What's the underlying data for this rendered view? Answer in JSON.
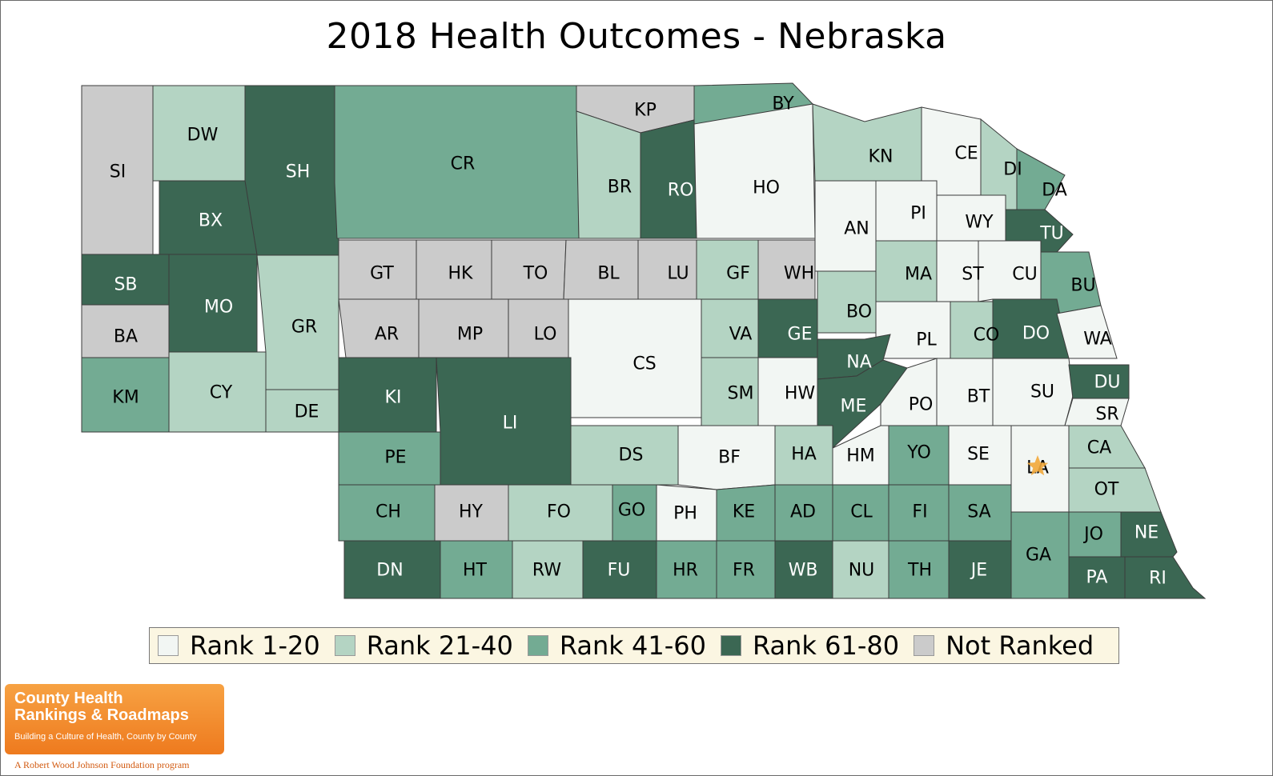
{
  "title": "2018 Health Outcomes - Nebraska",
  "colors": {
    "r1": "#f2f6f3",
    "r2": "#b4d4c3",
    "r3": "#73ab93",
    "r4": "#3b6753",
    "nr": "#cbcbcb"
  },
  "legend": [
    {
      "label": "Rank 1-20",
      "key": "r1"
    },
    {
      "label": "Rank 21-40",
      "key": "r2"
    },
    {
      "label": "Rank 41-60",
      "key": "r3"
    },
    {
      "label": "Rank 61-80",
      "key": "r4"
    },
    {
      "label": "Not Ranked",
      "key": "nr"
    }
  ],
  "counties": [
    {
      "abbr": "SI",
      "rank": "nr"
    },
    {
      "abbr": "DW",
      "rank": "r2"
    },
    {
      "abbr": "SH",
      "rank": "r4"
    },
    {
      "abbr": "CR",
      "rank": "r3"
    },
    {
      "abbr": "KP",
      "rank": "nr"
    },
    {
      "abbr": "BY",
      "rank": "r3"
    },
    {
      "abbr": "BX",
      "rank": "r4"
    },
    {
      "abbr": "BR",
      "rank": "r2"
    },
    {
      "abbr": "RO",
      "rank": "r4"
    },
    {
      "abbr": "HO",
      "rank": "r1"
    },
    {
      "abbr": "KN",
      "rank": "r2"
    },
    {
      "abbr": "CE",
      "rank": "r1"
    },
    {
      "abbr": "DI",
      "rank": "r2"
    },
    {
      "abbr": "DA",
      "rank": "r3"
    },
    {
      "abbr": "AN",
      "rank": "r1"
    },
    {
      "abbr": "PI",
      "rank": "r1"
    },
    {
      "abbr": "WY",
      "rank": "r1"
    },
    {
      "abbr": "TU",
      "rank": "r4"
    },
    {
      "abbr": "SB",
      "rank": "r4"
    },
    {
      "abbr": "MO",
      "rank": "r4"
    },
    {
      "abbr": "GR",
      "rank": "r2"
    },
    {
      "abbr": "GT",
      "rank": "nr"
    },
    {
      "abbr": "HK",
      "rank": "nr"
    },
    {
      "abbr": "TO",
      "rank": "nr"
    },
    {
      "abbr": "BL",
      "rank": "nr"
    },
    {
      "abbr": "LU",
      "rank": "nr"
    },
    {
      "abbr": "GF",
      "rank": "r2"
    },
    {
      "abbr": "WH",
      "rank": "nr"
    },
    {
      "abbr": "MA",
      "rank": "r2"
    },
    {
      "abbr": "ST",
      "rank": "r1"
    },
    {
      "abbr": "CU",
      "rank": "r1"
    },
    {
      "abbr": "BU",
      "rank": "r3"
    },
    {
      "abbr": "BA",
      "rank": "nr"
    },
    {
      "abbr": "AR",
      "rank": "nr"
    },
    {
      "abbr": "MP",
      "rank": "nr"
    },
    {
      "abbr": "LO",
      "rank": "nr"
    },
    {
      "abbr": "CS",
      "rank": "r1"
    },
    {
      "abbr": "VA",
      "rank": "r2"
    },
    {
      "abbr": "GE",
      "rank": "r4"
    },
    {
      "abbr": "BO",
      "rank": "r2"
    },
    {
      "abbr": "PL",
      "rank": "r1"
    },
    {
      "abbr": "CO",
      "rank": "r2"
    },
    {
      "abbr": "DO",
      "rank": "r4"
    },
    {
      "abbr": "WA",
      "rank": "r1"
    },
    {
      "abbr": "NA",
      "rank": "r4"
    },
    {
      "abbr": "KM",
      "rank": "r3"
    },
    {
      "abbr": "CY",
      "rank": "r2"
    },
    {
      "abbr": "DE",
      "rank": "r2"
    },
    {
      "abbr": "KI",
      "rank": "r4"
    },
    {
      "abbr": "LI",
      "rank": "r4"
    },
    {
      "abbr": "SM",
      "rank": "r2"
    },
    {
      "abbr": "HW",
      "rank": "r1"
    },
    {
      "abbr": "ME",
      "rank": "r4"
    },
    {
      "abbr": "PO",
      "rank": "r1"
    },
    {
      "abbr": "BT",
      "rank": "r1"
    },
    {
      "abbr": "SU",
      "rank": "r1"
    },
    {
      "abbr": "DU",
      "rank": "r4"
    },
    {
      "abbr": "SR",
      "rank": "r1"
    },
    {
      "abbr": "PE",
      "rank": "r3"
    },
    {
      "abbr": "DS",
      "rank": "r2"
    },
    {
      "abbr": "BF",
      "rank": "r1"
    },
    {
      "abbr": "HA",
      "rank": "r2"
    },
    {
      "abbr": "HM",
      "rank": "r1"
    },
    {
      "abbr": "YO",
      "rank": "r3"
    },
    {
      "abbr": "SE",
      "rank": "r1"
    },
    {
      "abbr": "LA",
      "rank": "r1"
    },
    {
      "abbr": "CA",
      "rank": "r2"
    },
    {
      "abbr": "CH",
      "rank": "r3"
    },
    {
      "abbr": "HY",
      "rank": "nr"
    },
    {
      "abbr": "FO",
      "rank": "r2"
    },
    {
      "abbr": "GO",
      "rank": "r3"
    },
    {
      "abbr": "PH",
      "rank": "r1"
    },
    {
      "abbr": "KE",
      "rank": "r3"
    },
    {
      "abbr": "AD",
      "rank": "r3"
    },
    {
      "abbr": "CL",
      "rank": "r3"
    },
    {
      "abbr": "FI",
      "rank": "r3"
    },
    {
      "abbr": "SA",
      "rank": "r3"
    },
    {
      "abbr": "OT",
      "rank": "r2"
    },
    {
      "abbr": "JO",
      "rank": "r3"
    },
    {
      "abbr": "NE",
      "rank": "r4"
    },
    {
      "abbr": "GA",
      "rank": "r3"
    },
    {
      "abbr": "DN",
      "rank": "r4"
    },
    {
      "abbr": "HT",
      "rank": "r3"
    },
    {
      "abbr": "RW",
      "rank": "r2"
    },
    {
      "abbr": "FU",
      "rank": "r4"
    },
    {
      "abbr": "HR",
      "rank": "r3"
    },
    {
      "abbr": "FR",
      "rank": "r3"
    },
    {
      "abbr": "WB",
      "rank": "r4"
    },
    {
      "abbr": "NU",
      "rank": "r2"
    },
    {
      "abbr": "TH",
      "rank": "r3"
    },
    {
      "abbr": "JE",
      "rank": "r4"
    },
    {
      "abbr": "PA",
      "rank": "r4"
    },
    {
      "abbr": "RI",
      "rank": "r4"
    }
  ],
  "capital_marker": "star-icon",
  "logo": {
    "line1": "County Health",
    "line2": "Rankings & Roadmaps",
    "tagline": "Building a Culture of Health, County by County",
    "program": "A Robert Wood Johnson Foundation program"
  }
}
